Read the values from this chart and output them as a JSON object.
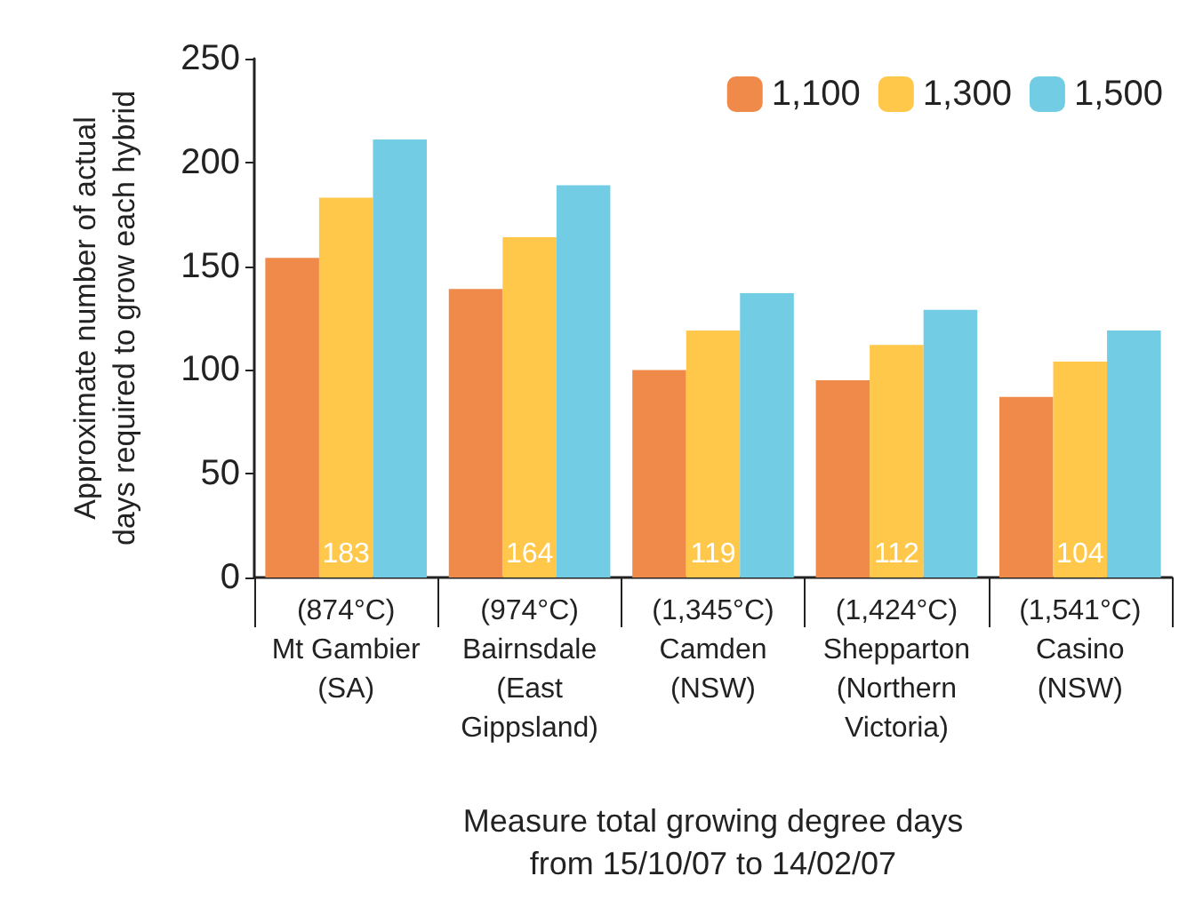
{
  "chart_data": {
    "type": "bar",
    "ylabel": "Approximate number of actual\ndays required to grow each hybrid",
    "xlabel": "Measure total growing degree days\nfrom 15/10/07 to 14/02/07",
    "categories": [
      "(874°C)\nMt Gambier\n(SA)",
      "(974°C)\nBairnsdale\n(East\nGippsland)",
      "(1,345°C)\nCamden\n(NSW)",
      "(1,424°C)\nShepparton\n(Northern\nVictoria)",
      "(1,541°C)\nCasino\n(NSW)"
    ],
    "series": [
      {
        "name": "1,100",
        "color": "#f08a4b",
        "values": [
          154,
          139,
          100,
          95,
          87
        ]
      },
      {
        "name": "1,300",
        "color": "#ffc84a",
        "values": [
          183,
          164,
          119,
          112,
          104
        ],
        "value_labels": [
          "183",
          "164",
          "119",
          "112",
          "104"
        ]
      },
      {
        "name": "1,500",
        "color": "#72cde4",
        "values": [
          211,
          189,
          137,
          129,
          119
        ]
      }
    ],
    "ylim": [
      0,
      250
    ],
    "yticks": [
      0,
      50,
      100,
      150,
      200,
      250
    ],
    "grid": false,
    "legend": "top right"
  }
}
